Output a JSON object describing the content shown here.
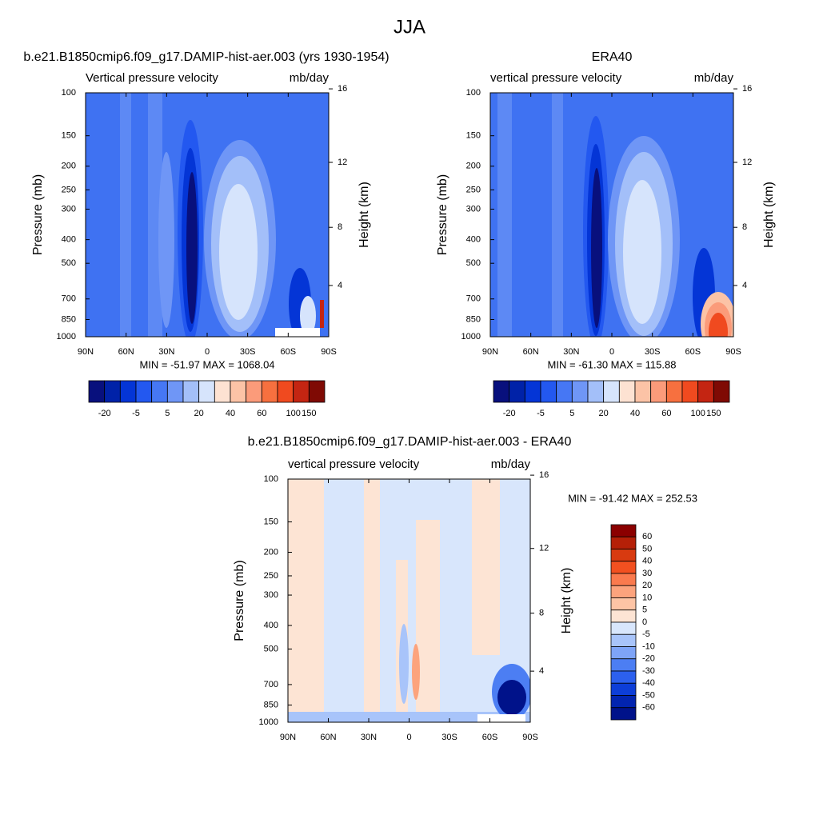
{
  "title": "JJA",
  "chart_data": [
    {
      "type": "contour",
      "title": "b.e21.B1850cmip6.f09_g17.DAMIP-hist-aer.003 (yrs 1930-1954)",
      "left_label": "Vertical pressure velocity",
      "right_label": "mb/day",
      "ylabel": "Pressure (mb)",
      "y2label": "Height (km)",
      "yscale": "log",
      "ylim": [
        1000,
        100
      ],
      "yticks": [
        100,
        150,
        200,
        250,
        300,
        400,
        500,
        700,
        850,
        1000
      ],
      "y2ticks": [
        4,
        8,
        12,
        16
      ],
      "xlim": [
        90,
        -90
      ],
      "xticks": [
        {
          "value": 90,
          "label": "90N"
        },
        {
          "value": 60,
          "label": "60N"
        },
        {
          "value": 30,
          "label": "30N"
        },
        0,
        {
          "value": -30,
          "label": "30S"
        },
        {
          "value": -60,
          "label": "60S"
        },
        {
          "value": -90,
          "label": "90S"
        }
      ],
      "annotation": "MIN = -51.97  MAX = 1068.04",
      "colorbar": {
        "orientation": "horizontal",
        "colors": [
          "#08107d",
          "#0022a8",
          "#0435d6",
          "#2358f0",
          "#4677f4",
          "#6f96f6",
          "#a3bff9",
          "#d6e4fc",
          "#fde2d2",
          "#fcc3a6",
          "#fb9b7a",
          "#f7703f",
          "#f04a1f",
          "#c42512",
          "#7f0a04"
        ],
        "labels": [
          -20,
          -5,
          5,
          20,
          40,
          60,
          100,
          150
        ]
      }
    },
    {
      "type": "contour",
      "title": "ERA40",
      "left_label": "vertical pressure velocity",
      "right_label": "mb/day",
      "ylabel": "Pressure (mb)",
      "y2label": "Height (km)",
      "yscale": "log",
      "ylim": [
        1000,
        100
      ],
      "yticks": [
        100,
        150,
        200,
        250,
        300,
        400,
        500,
        700,
        850,
        1000
      ],
      "y2ticks": [
        4,
        8,
        12,
        16
      ],
      "xlim": [
        90,
        -90
      ],
      "xticks": [
        {
          "value": 90,
          "label": "90N"
        },
        {
          "value": 60,
          "label": "60N"
        },
        {
          "value": 30,
          "label": "30N"
        },
        0,
        {
          "value": -30,
          "label": "30S"
        },
        {
          "value": -60,
          "label": "60S"
        },
        {
          "value": -90,
          "label": "90S"
        }
      ],
      "annotation": "MIN = -61.30  MAX = 115.88",
      "colorbar": {
        "orientation": "horizontal",
        "colors": [
          "#08107d",
          "#0022a8",
          "#0435d6",
          "#2358f0",
          "#4677f4",
          "#6f96f6",
          "#a3bff9",
          "#d6e4fc",
          "#fde2d2",
          "#fcc3a6",
          "#fb9b7a",
          "#f7703f",
          "#f04a1f",
          "#c42512",
          "#7f0a04"
        ],
        "labels": [
          -20,
          -5,
          5,
          20,
          40,
          60,
          100,
          150
        ]
      }
    },
    {
      "type": "contour",
      "title": "b.e21.B1850cmip6.f09_g17.DAMIP-hist-aer.003 - ERA40",
      "left_label": "vertical pressure velocity",
      "right_label": "mb/day",
      "ylabel": "Pressure (mb)",
      "y2label": "Height (km)",
      "yscale": "log",
      "ylim": [
        1000,
        100
      ],
      "yticks": [
        100,
        150,
        200,
        250,
        300,
        400,
        500,
        700,
        850,
        1000
      ],
      "y2ticks": [
        4,
        8,
        12,
        16
      ],
      "xlim": [
        90,
        -90
      ],
      "xticks": [
        {
          "value": 90,
          "label": "90N"
        },
        {
          "value": 60,
          "label": "60N"
        },
        {
          "value": 30,
          "label": "30N"
        },
        0,
        {
          "value": -30,
          "label": "30S"
        },
        {
          "value": -60,
          "label": "60S"
        },
        {
          "value": -90,
          "label": "90S"
        }
      ],
      "annotation": "MIN = -91.42  MAX = 252.53",
      "colorbar": {
        "orientation": "vertical",
        "colors": [
          "#8b0000",
          "#b52008",
          "#d83a10",
          "#f25020",
          "#fa7a4e",
          "#fca37d",
          "#fdc4a5",
          "#fde4d4",
          "#d8e6fc",
          "#a8c4fa",
          "#7ea4f7",
          "#4c7ef3",
          "#2c60ee",
          "#0d3ed8",
          "#0224b0",
          "#00128a"
        ],
        "labels": [
          60,
          50,
          40,
          30,
          20,
          10,
          5,
          0,
          -5,
          -10,
          -20,
          -30,
          -40,
          -50,
          -60
        ]
      }
    }
  ]
}
